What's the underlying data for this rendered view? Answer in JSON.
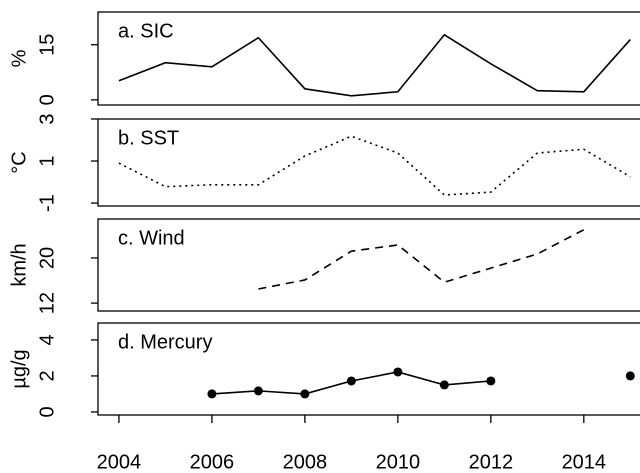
{
  "chart_data": [
    {
      "type": "line",
      "title": "a. SIC",
      "ylabel": "%",
      "color": "#000000",
      "linestyle": "solid",
      "x": [
        2004,
        2005,
        2006,
        2007,
        2008,
        2009,
        2010,
        2011,
        2012,
        2013,
        2014,
        2015
      ],
      "values": [
        5.2,
        10.1,
        9.0,
        16.9,
        3.0,
        1.1,
        2.2,
        17.7,
        9.8,
        2.5,
        2.2,
        16.4
      ],
      "xlim": [
        2003.55,
        2015.23
      ],
      "ylim": [
        -1.4,
        23.9
      ],
      "yticks": [
        0,
        15
      ]
    },
    {
      "type": "line",
      "title": "b. SST",
      "ylabel": "°C",
      "color": "#000000",
      "linestyle": "dotted",
      "x": [
        2004,
        2005,
        2006,
        2007,
        2008,
        2009,
        2010,
        2011,
        2012,
        2013,
        2014,
        2015
      ],
      "values": [
        0.9,
        -0.22,
        -0.13,
        -0.13,
        1.24,
        2.18,
        1.38,
        -0.62,
        -0.48,
        1.38,
        1.56,
        0.25
      ],
      "xlim": [
        2003.55,
        2015.23
      ],
      "ylim": [
        -1.14,
        3
      ],
      "yticks": [
        -1,
        1,
        3
      ]
    },
    {
      "type": "line",
      "title": "c. Wind",
      "ylabel": "km/h",
      "color": "#000000",
      "linestyle": "dashed",
      "x": [
        2004,
        2005,
        2006,
        2007,
        2008,
        2009,
        2010,
        2011,
        2012,
        2013,
        2014,
        2015
      ],
      "values": [
        null,
        null,
        null,
        14.5,
        16.1,
        21.2,
        22.3,
        15.7,
        18.2,
        20.7,
        25.0,
        null
      ],
      "xlim": [
        2003.55,
        2015.23
      ],
      "ylim": [
        10.6,
        26.9
      ],
      "yticks": [
        12,
        20
      ]
    },
    {
      "type": "line",
      "title": "d. Mercury",
      "ylabel": "µg/g",
      "color": "#000000",
      "linestyle": "solid",
      "markers": true,
      "x": [
        2004,
        2005,
        2006,
        2007,
        2008,
        2009,
        2010,
        2011,
        2012,
        2013,
        2014,
        2015
      ],
      "values": [
        null,
        null,
        1.0,
        1.17,
        1.0,
        1.72,
        2.22,
        1.5,
        1.72,
        null,
        null,
        2.0
      ],
      "xlim": [
        2003.55,
        2015.23
      ],
      "ylim": [
        -0.17,
        4.94
      ],
      "yticks": [
        0,
        2,
        4
      ],
      "xticks": [
        2004,
        2006,
        2008,
        2010,
        2012,
        2014
      ]
    }
  ]
}
